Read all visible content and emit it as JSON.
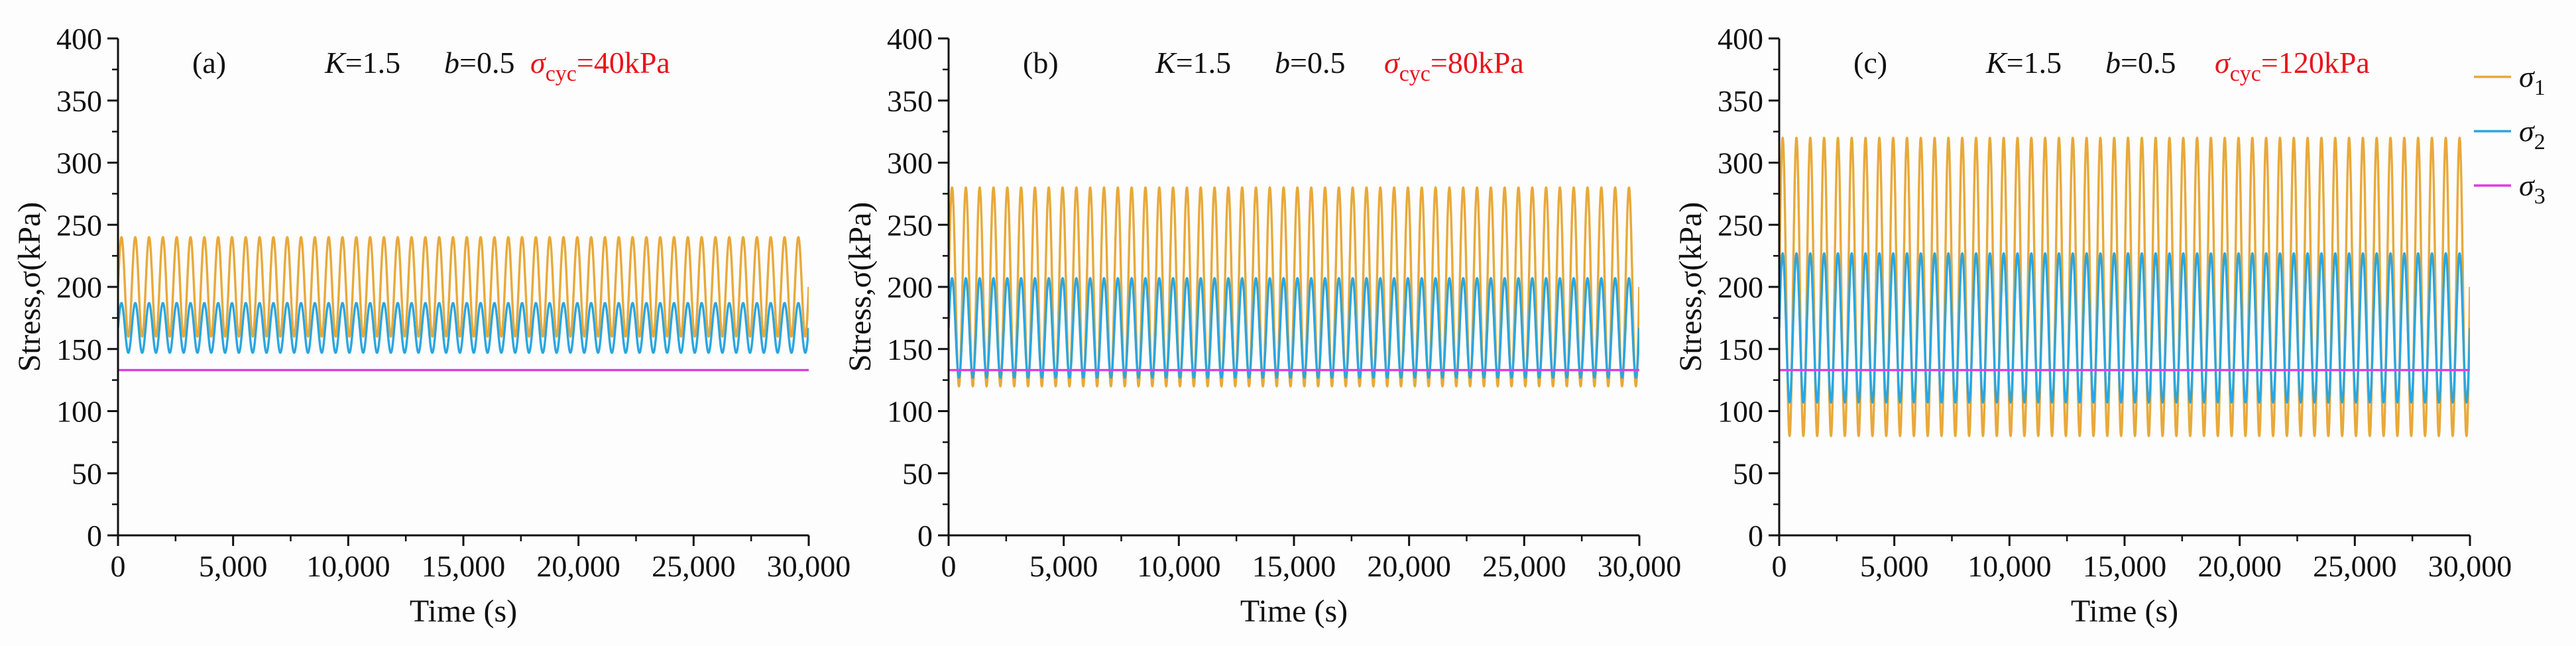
{
  "colors": {
    "sigma1": "#E8A93A",
    "sigma2": "#2AA6E0",
    "sigma3": "#E13AE0",
    "red": "#E8141C",
    "axis": "#111111"
  },
  "legend": [
    {
      "symbol": "σ",
      "sub": "1",
      "series": "sigma1"
    },
    {
      "symbol": "σ",
      "sub": "2",
      "series": "sigma2"
    },
    {
      "symbol": "σ",
      "sub": "3",
      "series": "sigma3"
    }
  ],
  "chart_data": [
    {
      "type": "line",
      "panel": "(a)",
      "params": {
        "k_var": "K",
        "k_val": "=1.5",
        "b_var": "b",
        "b_val": "=0.5",
        "sigma_sym": "σ",
        "sigma_sub": "cyc",
        "sigma_val": "=40kPa"
      },
      "xlabel": "Time (s)",
      "ylabel": "Stress,σ(kPa)",
      "xlim": [
        0,
        30000
      ],
      "ylim": [
        0,
        400
      ],
      "xticks": [
        "0",
        "5,000",
        "10,000",
        "15,000",
        "20,000",
        "25,000",
        "30,000"
      ],
      "yticks": [
        "0",
        "50",
        "100",
        "150",
        "200",
        "250",
        "300",
        "350",
        "400"
      ],
      "cycles": 50,
      "series": [
        {
          "name": "σ1",
          "key": "sigma1",
          "mean": 200,
          "amplitude": 40
        },
        {
          "name": "σ2",
          "key": "sigma2",
          "mean": 167,
          "amplitude": 20
        },
        {
          "name": "σ3",
          "key": "sigma3",
          "mean": 133,
          "amplitude": 0
        }
      ]
    },
    {
      "type": "line",
      "panel": "(b)",
      "params": {
        "k_var": "K",
        "k_val": "=1.5",
        "b_var": "b",
        "b_val": "=0.5",
        "sigma_sym": "σ",
        "sigma_sub": "cyc",
        "sigma_val": "=80kPa"
      },
      "xlabel": "Time (s)",
      "ylabel": "Stress,σ(kPa)",
      "xlim": [
        0,
        30000
      ],
      "ylim": [
        0,
        400
      ],
      "xticks": [
        "0",
        "5,000",
        "10,000",
        "15,000",
        "20,000",
        "25,000",
        "30,000"
      ],
      "yticks": [
        "0",
        "50",
        "100",
        "150",
        "200",
        "250",
        "300",
        "350",
        "400"
      ],
      "cycles": 50,
      "series": [
        {
          "name": "σ1",
          "key": "sigma1",
          "mean": 200,
          "amplitude": 80
        },
        {
          "name": "σ2",
          "key": "sigma2",
          "mean": 167,
          "amplitude": 40
        },
        {
          "name": "σ3",
          "key": "sigma3",
          "mean": 133,
          "amplitude": 0
        }
      ]
    },
    {
      "type": "line",
      "panel": "(c)",
      "params": {
        "k_var": "K",
        "k_val": "=1.5",
        "b_var": "b",
        "b_val": "=0.5",
        "sigma_sym": "σ",
        "sigma_sub": "cyc",
        "sigma_val": "=120kPa"
      },
      "xlabel": "Time (s)",
      "ylabel": "Stress,σ(kPa)",
      "xlim": [
        0,
        30000
      ],
      "ylim": [
        0,
        400
      ],
      "xticks": [
        "0",
        "5,000",
        "10,000",
        "15,000",
        "20,000",
        "25,000",
        "30,000"
      ],
      "yticks": [
        "0",
        "50",
        "100",
        "150",
        "200",
        "250",
        "300",
        "350",
        "400"
      ],
      "cycles": 50,
      "series": [
        {
          "name": "σ1",
          "key": "sigma1",
          "mean": 200,
          "amplitude": 120
        },
        {
          "name": "σ2",
          "key": "sigma2",
          "mean": 167,
          "amplitude": 60
        },
        {
          "name": "σ3",
          "key": "sigma3",
          "mean": 133,
          "amplitude": 0
        }
      ]
    }
  ]
}
